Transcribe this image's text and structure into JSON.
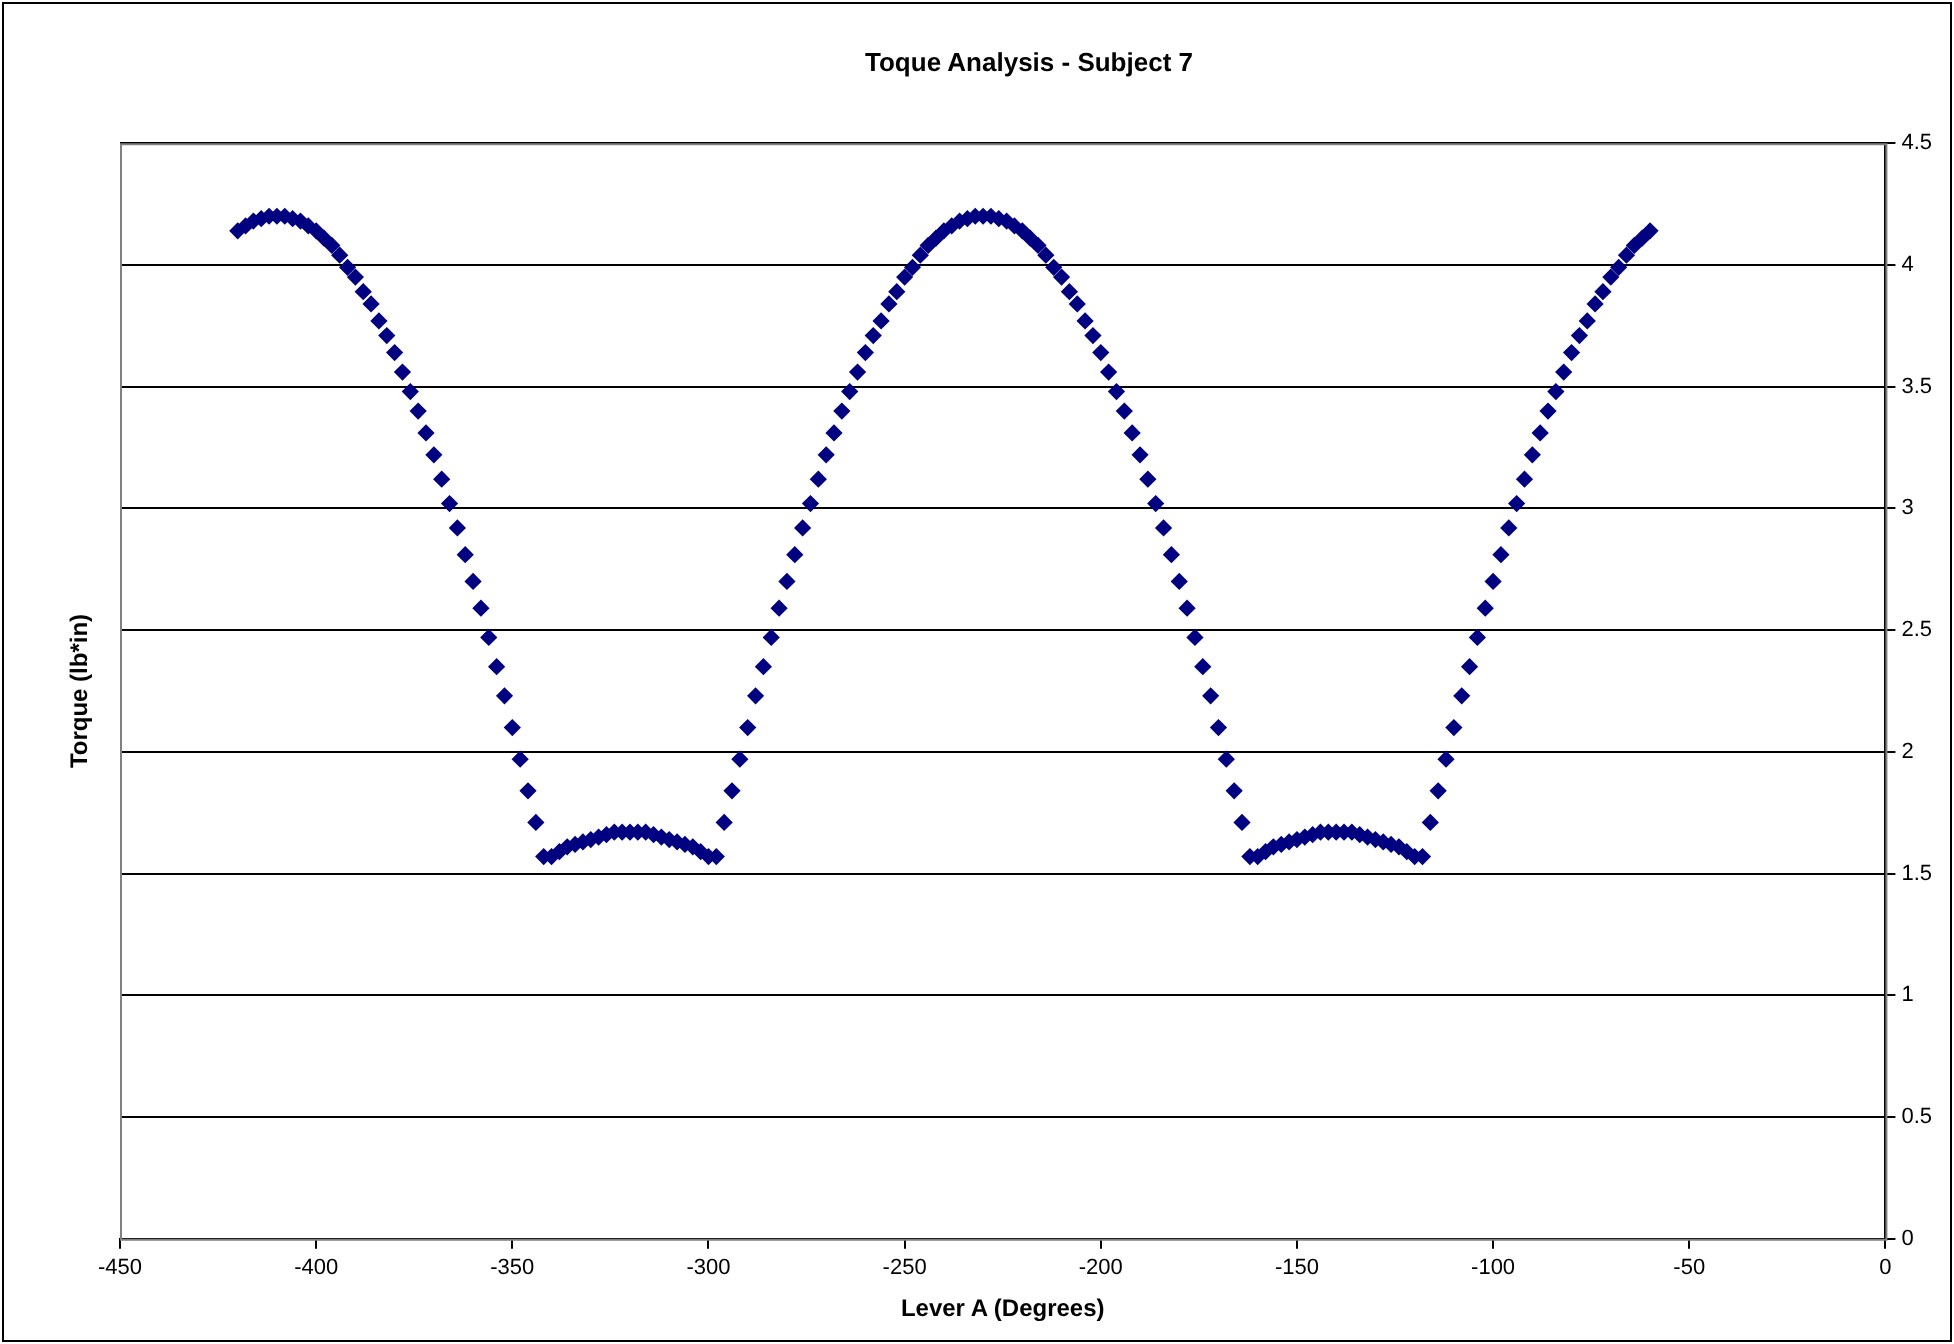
{
  "chart_data": {
    "type": "scatter",
    "title": "Toque Analysis - Subject 7",
    "xlabel": "Lever A (Degrees)",
    "ylabel": "Torque (lb*in)",
    "xlim": [
      -450,
      0
    ],
    "xticks": [
      -450,
      -400,
      -350,
      -300,
      -250,
      -200,
      -150,
      -100,
      -50,
      0
    ],
    "ylim": [
      0,
      4.5
    ],
    "yticks": [
      0,
      0.5,
      1,
      1.5,
      2,
      2.5,
      3,
      3.5,
      4,
      4.5
    ],
    "grid": "y",
    "legend": false,
    "marker": "diamond",
    "x": [
      -420,
      -418,
      -416,
      -414,
      -412,
      -410,
      -408,
      -406,
      -404,
      -402,
      -400,
      -398,
      -396,
      -394,
      -392,
      -390,
      -388,
      -386,
      -384,
      -382,
      -380,
      -378,
      -376,
      -374,
      -372,
      -370,
      -368,
      -366,
      -364,
      -362,
      -360,
      -358,
      -356,
      -354,
      -352,
      -350,
      -348,
      -346,
      -344,
      -342,
      -340,
      -338,
      -336,
      -334,
      -332,
      -330,
      -328,
      -326,
      -324,
      -322,
      -320,
      -318,
      -316,
      -314,
      -312,
      -310,
      -308,
      -306,
      -304,
      -302,
      -300,
      -298,
      -296,
      -294,
      -292,
      -290,
      -288,
      -286,
      -284,
      -282,
      -280,
      -278,
      -276,
      -274,
      -272,
      -270,
      -268,
      -266,
      -264,
      -262,
      -260,
      -258,
      -256,
      -254,
      -252,
      -250,
      -248,
      -246,
      -244,
      -242,
      -240,
      -238,
      -236,
      -234,
      -232,
      -230,
      -228,
      -226,
      -224,
      -222,
      -220,
      -218,
      -216,
      -214,
      -212,
      -210,
      -208,
      -206,
      -204,
      -202,
      -200,
      -198,
      -196,
      -194,
      -192,
      -190,
      -188,
      -186,
      -184,
      -182,
      -180,
      -178,
      -176,
      -174,
      -172,
      -170,
      -168,
      -166,
      -164,
      -162,
      -160,
      -158,
      -156,
      -154,
      -152,
      -150,
      -148,
      -146,
      -144,
      -142,
      -140,
      -138,
      -136,
      -134,
      -132,
      -130,
      -128,
      -126,
      -124,
      -122,
      -120,
      -118,
      -116,
      -114,
      -112,
      -110,
      -108,
      -106,
      -104,
      -102,
      -100,
      -98,
      -96,
      -94,
      -92,
      -90,
      -88,
      -86,
      -84,
      -82,
      -80,
      -78,
      -76,
      -74,
      -72,
      -70,
      -68,
      -66,
      -64,
      -62,
      -60
    ],
    "series": [
      {
        "color": "#000080",
        "values": [
          4.14,
          4.16,
          4.18,
          4.19,
          4.2,
          4.2,
          4.2,
          4.19,
          4.18,
          4.16,
          4.14,
          4.11,
          4.08,
          4.04,
          3.99,
          3.95,
          3.89,
          3.84,
          3.77,
          3.71,
          3.64,
          3.56,
          3.48,
          3.4,
          3.31,
          3.22,
          3.12,
          3.02,
          2.92,
          2.81,
          2.7,
          2.59,
          2.47,
          2.35,
          2.23,
          2.1,
          1.97,
          1.84,
          1.71,
          1.57,
          1.57,
          1.59,
          1.61,
          1.62,
          1.63,
          1.64,
          1.65,
          1.66,
          1.67,
          1.67,
          1.67,
          1.67,
          1.67,
          1.66,
          1.65,
          1.64,
          1.63,
          1.62,
          1.61,
          1.59,
          1.57,
          1.57,
          1.71,
          1.84,
          1.97,
          2.1,
          2.23,
          2.35,
          2.47,
          2.59,
          2.7,
          2.81,
          2.92,
          3.02,
          3.12,
          3.22,
          3.31,
          3.4,
          3.48,
          3.56,
          3.64,
          3.71,
          3.77,
          3.84,
          3.89,
          3.95,
          3.99,
          4.04,
          4.08,
          4.11,
          4.14,
          4.16,
          4.18,
          4.19,
          4.2,
          4.2,
          4.2,
          4.19,
          4.18,
          4.16,
          4.14,
          4.11,
          4.08,
          4.04,
          3.99,
          3.95,
          3.89,
          3.84,
          3.77,
          3.71,
          3.64,
          3.56,
          3.48,
          3.4,
          3.31,
          3.22,
          3.12,
          3.02,
          2.92,
          2.81,
          2.7,
          2.59,
          2.47,
          2.35,
          2.23,
          2.1,
          1.97,
          1.84,
          1.71,
          1.57,
          1.57,
          1.59,
          1.61,
          1.62,
          1.63,
          1.64,
          1.65,
          1.66,
          1.67,
          1.67,
          1.67,
          1.67,
          1.67,
          1.66,
          1.65,
          1.64,
          1.63,
          1.62,
          1.61,
          1.59,
          1.57,
          1.57,
          1.71,
          1.84,
          1.97,
          2.1,
          2.23,
          2.35,
          2.47,
          2.59,
          2.7,
          2.81,
          2.92,
          3.02,
          3.12,
          3.22,
          3.31,
          3.4,
          3.48,
          3.56,
          3.64,
          3.71,
          3.77,
          3.84,
          3.89,
          3.95,
          3.99,
          4.04,
          4.08,
          4.11,
          4.14
        ]
      }
    ]
  }
}
